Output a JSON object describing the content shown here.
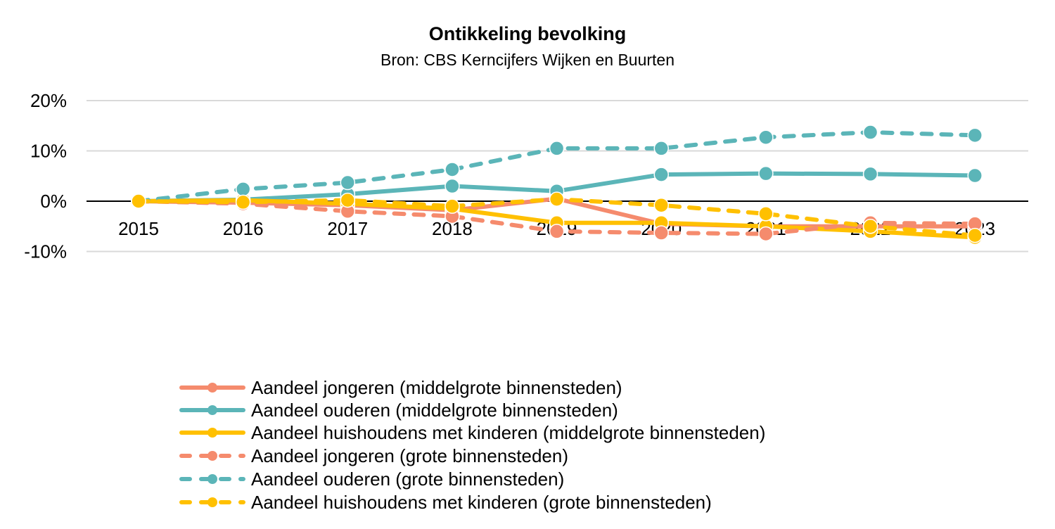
{
  "chart_data": {
    "type": "line",
    "title": "Ontikkeling bevolking",
    "subtitle": "Bron: CBS Kerncijfers Wijken en Buurten",
    "xlabel": "",
    "ylabel": "",
    "categories": [
      "2015",
      "2016",
      "2017",
      "2018",
      "2019",
      "2020",
      "2021",
      "2022",
      "2023"
    ],
    "ylim": [
      -10,
      20
    ],
    "yticks": [
      20,
      10,
      0,
      -10
    ],
    "ytick_labels": [
      "20%",
      "10%",
      "0%",
      "-10%"
    ],
    "grid": true,
    "legend_position": "bottom",
    "series": [
      {
        "name": "Aandeel jongeren (middelgrote binnensteden)",
        "color": "#F58B6D",
        "dash": false,
        "values": [
          0,
          -0.3,
          -0.8,
          -1.8,
          0.5,
          -4.5,
          -5.0,
          -5.0,
          -5.0
        ]
      },
      {
        "name": "Aandeel ouderen (middelgrote binnensteden)",
        "color": "#5BB5B8",
        "dash": false,
        "values": [
          0,
          0.3,
          1.4,
          3.0,
          2.0,
          5.3,
          5.5,
          5.4,
          5.1
        ]
      },
      {
        "name": "Aandeel huishoudens met kinderen (middelgrote binnensteden)",
        "color": "#FFC000",
        "dash": false,
        "values": [
          0,
          0.2,
          -0.5,
          -1.5,
          -4.3,
          -4.3,
          -5.0,
          -6.0,
          -7.2
        ]
      },
      {
        "name": "Aandeel jongeren (grote binnensteden)",
        "color": "#F58B6D",
        "dash": true,
        "values": [
          0,
          -0.5,
          -2.0,
          -3.0,
          -6.0,
          -6.3,
          -6.5,
          -4.3,
          -4.5
        ]
      },
      {
        "name": "Aandeel ouderen (grote binnensteden)",
        "color": "#5BB5B8",
        "dash": true,
        "values": [
          0,
          2.4,
          3.7,
          6.3,
          10.5,
          10.5,
          12.7,
          13.7,
          13.1
        ]
      },
      {
        "name": "Aandeel huishoudens met kinderen (grote binnensteden)",
        "color": "#FFC000",
        "dash": true,
        "values": [
          0,
          -0.2,
          0.2,
          -1.0,
          0.4,
          -0.8,
          -2.5,
          -5.0,
          -6.8
        ]
      }
    ]
  }
}
